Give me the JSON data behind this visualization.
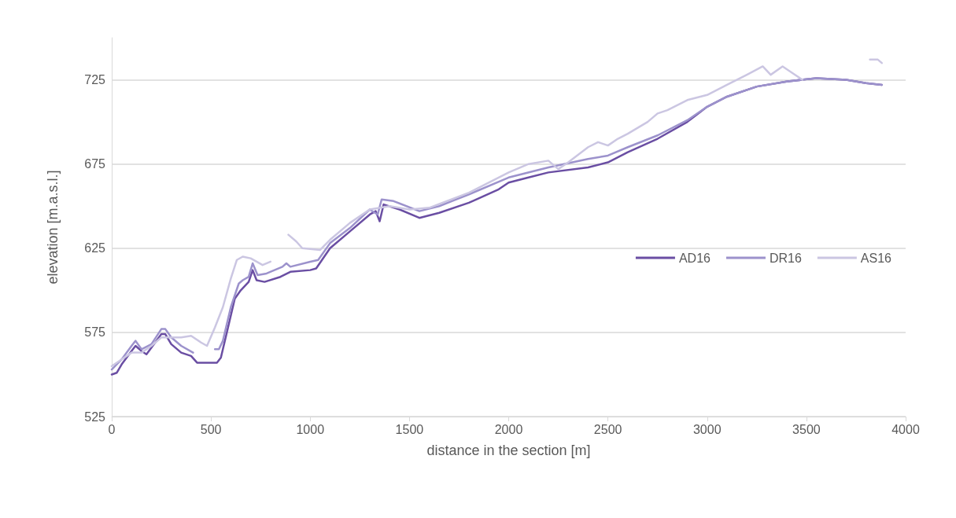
{
  "chart_data": {
    "type": "line",
    "xlabel": "distance in the section [m]",
    "ylabel": "elevation [m.a.s.l.]",
    "xlim": [
      0,
      4000
    ],
    "xticks": [
      0,
      500,
      1000,
      1500,
      2000,
      2500,
      3000,
      3500,
      4000
    ],
    "ylim": [
      525,
      750
    ],
    "yticks": [
      525,
      575,
      625,
      675,
      725
    ],
    "grid": "y",
    "legend": "right",
    "marker": "none",
    "line_style": "solid",
    "series": [
      {
        "name": "AD16",
        "color": "#6a4ea3",
        "x": [
          0,
          25,
          50,
          75,
          100,
          120,
          150,
          175,
          200,
          250,
          270,
          300,
          350,
          400,
          430,
          500,
          530,
          550,
          580,
          620,
          650,
          690,
          710,
          730,
          770,
          850,
          900,
          1000,
          1030,
          1100,
          1200,
          1300,
          1330,
          1350,
          1370,
          1450,
          1550,
          1650,
          1800,
          1950,
          2000,
          2100,
          2200,
          2400,
          2500,
          2600,
          2750,
          2900,
          3000,
          3100,
          3250,
          3400,
          3550,
          3700,
          3800,
          3880
        ],
        "values": [
          550,
          551,
          556,
          560,
          564,
          567,
          564,
          562,
          566,
          574,
          574,
          568,
          563,
          561,
          557,
          557,
          557,
          560,
          575,
          595,
          600,
          605,
          612,
          606,
          605,
          608,
          611,
          612,
          613,
          625,
          635,
          645,
          647,
          641,
          651,
          648,
          643,
          646,
          652,
          660,
          664,
          667,
          670,
          673,
          676,
          682,
          690,
          700,
          709,
          715,
          721,
          724,
          726,
          725,
          723,
          722
        ]
      },
      {
        "name": "DR16",
        "color": "#9c92cc",
        "x": [
          0,
          50,
          100,
          120,
          150,
          200,
          250,
          270,
          300,
          350,
          410,
          470,
          520,
          540,
          560,
          600,
          640,
          660,
          690,
          710,
          735,
          780,
          860,
          880,
          900,
          1000,
          1040,
          1100,
          1200,
          1300,
          1340,
          1360,
          1420,
          1550,
          1650,
          1800,
          2000,
          2200,
          2400,
          2500,
          2600,
          2750,
          2900,
          3000,
          3100,
          3250,
          3400,
          3550,
          3700,
          3800,
          3880
        ],
        "values": [
          553,
          559,
          567,
          570,
          565,
          568,
          577,
          577,
          572,
          567,
          563,
          null,
          565,
          565,
          570,
          590,
          604,
          606,
          608,
          616,
          609,
          610,
          614,
          616,
          614,
          617,
          618,
          628,
          637,
          648,
          645,
          654,
          653,
          647,
          650,
          657,
          667,
          673,
          678,
          680,
          685,
          692,
          701,
          709,
          715,
          721,
          724,
          726,
          725,
          723,
          722
        ]
      },
      {
        "name": "AS16",
        "color": "#cbc6e2",
        "x": [
          0,
          50,
          100,
          150,
          200,
          250,
          300,
          350,
          400,
          450,
          480,
          520,
          560,
          600,
          630,
          660,
          700,
          730,
          760,
          800,
          850,
          890,
          930,
          960,
          1050,
          1100,
          1200,
          1300,
          1400,
          1500,
          1600,
          1800,
          2000,
          2100,
          2200,
          2250,
          2300,
          2400,
          2450,
          2500,
          2550,
          2600,
          2700,
          2750,
          2800,
          2900,
          3000,
          3100,
          3200,
          3280,
          3320,
          3380,
          3430,
          3480,
          3650,
          3820,
          3860,
          3880
        ],
        "values": [
          555,
          559,
          563,
          563,
          567,
          572,
          572,
          572,
          573,
          569,
          567,
          578,
          590,
          607,
          618,
          620,
          619,
          617,
          615,
          617,
          null,
          633,
          629,
          625,
          624,
          630,
          640,
          648,
          650,
          648,
          649,
          658,
          670,
          675,
          677,
          672,
          676,
          685,
          688,
          686,
          690,
          693,
          700,
          705,
          707,
          713,
          716,
          722,
          728,
          733,
          728,
          733,
          729,
          725,
          null,
          737,
          737,
          735
        ]
      }
    ]
  }
}
